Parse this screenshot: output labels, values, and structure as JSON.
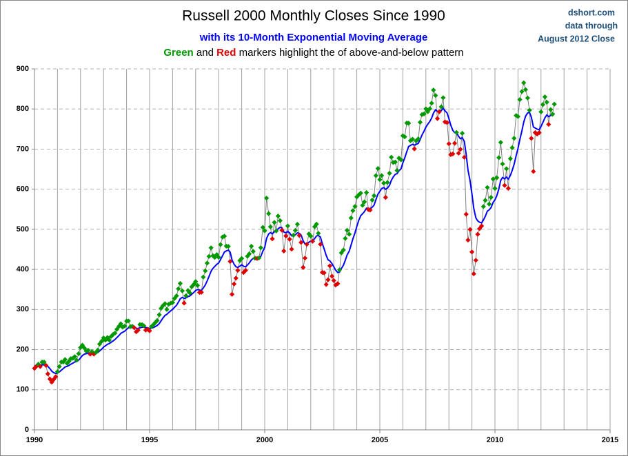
{
  "chart_data": {
    "type": "line",
    "title": "Russell 2000 Monthly Closes Since 1990",
    "subtitle": "with  its 10-Month Exponential Moving Average",
    "subtitle2": [
      {
        "text": "Green",
        "color": "#009900",
        "bold": true
      },
      {
        "text": " and ",
        "color": "#000000",
        "bold": false
      },
      {
        "text": "Red",
        "color": "#e00000",
        "bold": true
      },
      {
        "text": " markers highlight the of above-and-below pattern",
        "color": "#000000",
        "bold": false
      }
    ],
    "source": [
      "dshort.com",
      "data through",
      "August 2012  Close"
    ],
    "xlim": [
      1990,
      2015
    ],
    "xticks": [
      1990,
      1995,
      2000,
      2005,
      2010,
      2015
    ],
    "xgrid": [
      1990,
      1991,
      1992,
      1993,
      1994,
      1995,
      1996,
      1997,
      1998,
      1999,
      2000,
      2001,
      2002,
      2003,
      2004,
      2005,
      2006,
      2007,
      2008,
      2009,
      2010,
      2011,
      2012,
      2013,
      2014,
      2015
    ],
    "ylim": [
      0,
      900
    ],
    "yticks": [
      0,
      100,
      200,
      300,
      400,
      500,
      600,
      700,
      800,
      900
    ],
    "grid": true,
    "x": [
      1990,
      1990.08,
      1990.17,
      1990.25,
      1990.33,
      1990.42,
      1990.5,
      1990.58,
      1990.67,
      1990.75,
      1990.83,
      1990.92,
      1991,
      1991.08,
      1991.17,
      1991.25,
      1991.33,
      1991.42,
      1991.5,
      1991.58,
      1991.67,
      1991.75,
      1991.83,
      1991.92,
      1992,
      1992.08,
      1992.17,
      1992.25,
      1992.33,
      1992.42,
      1992.5,
      1992.58,
      1992.67,
      1992.75,
      1992.83,
      1992.92,
      1993,
      1993.08,
      1993.17,
      1993.25,
      1993.33,
      1993.42,
      1993.5,
      1993.58,
      1993.67,
      1993.75,
      1993.83,
      1993.92,
      1994,
      1994.08,
      1994.17,
      1994.25,
      1994.33,
      1994.42,
      1994.5,
      1994.58,
      1994.67,
      1994.75,
      1994.83,
      1994.92,
      1995,
      1995.08,
      1995.17,
      1995.25,
      1995.33,
      1995.42,
      1995.5,
      1995.58,
      1995.67,
      1995.75,
      1995.83,
      1995.92,
      1996,
      1996.08,
      1996.17,
      1996.25,
      1996.33,
      1996.42,
      1996.5,
      1996.58,
      1996.67,
      1996.75,
      1996.83,
      1996.92,
      1997,
      1997.08,
      1997.17,
      1997.25,
      1997.33,
      1997.42,
      1997.5,
      1997.58,
      1997.67,
      1997.75,
      1997.83,
      1997.92,
      1998,
      1998.08,
      1998.17,
      1998.25,
      1998.33,
      1998.42,
      1998.5,
      1998.58,
      1998.67,
      1998.75,
      1998.83,
      1998.92,
      1999,
      1999.08,
      1999.17,
      1999.25,
      1999.33,
      1999.42,
      1999.5,
      1999.58,
      1999.67,
      1999.75,
      1999.83,
      1999.92,
      2000,
      2000.08,
      2000.17,
      2000.25,
      2000.33,
      2000.42,
      2000.5,
      2000.58,
      2000.67,
      2000.75,
      2000.83,
      2000.92,
      2001,
      2001.08,
      2001.17,
      2001.25,
      2001.33,
      2001.42,
      2001.5,
      2001.58,
      2001.67,
      2001.75,
      2001.83,
      2001.92,
      2002,
      2002.08,
      2002.17,
      2002.25,
      2002.33,
      2002.42,
      2002.5,
      2002.58,
      2002.67,
      2002.75,
      2002.83,
      2002.92,
      2003,
      2003.08,
      2003.17,
      2003.25,
      2003.33,
      2003.42,
      2003.5,
      2003.58,
      2003.67,
      2003.75,
      2003.83,
      2003.92,
      2004,
      2004.08,
      2004.17,
      2004.25,
      2004.33,
      2004.42,
      2004.5,
      2004.58,
      2004.67,
      2004.75,
      2004.83,
      2004.92,
      2005,
      2005.08,
      2005.17,
      2005.25,
      2005.33,
      2005.42,
      2005.5,
      2005.58,
      2005.67,
      2005.75,
      2005.83,
      2005.92,
      2006,
      2006.08,
      2006.17,
      2006.25,
      2006.33,
      2006.42,
      2006.5,
      2006.58,
      2006.67,
      2006.75,
      2006.83,
      2006.92,
      2007,
      2007.08,
      2007.17,
      2007.25,
      2007.33,
      2007.42,
      2007.5,
      2007.58,
      2007.67,
      2007.75,
      2007.83,
      2007.92,
      2008,
      2008.08,
      2008.17,
      2008.25,
      2008.33,
      2008.42,
      2008.5,
      2008.58,
      2008.67,
      2008.75,
      2008.83,
      2008.92,
      2009,
      2009.08,
      2009.17,
      2009.25,
      2009.33,
      2009.42,
      2009.5,
      2009.58,
      2009.67,
      2009.75,
      2009.83,
      2009.92,
      2010,
      2010.08,
      2010.17,
      2010.25,
      2010.33,
      2010.42,
      2010.5,
      2010.58,
      2010.67,
      2010.75,
      2010.83,
      2010.92,
      2011,
      2011.08,
      2011.17,
      2011.25,
      2011.33,
      2011.42,
      2011.5,
      2011.58,
      2011.67,
      2011.75,
      2011.83,
      2011.92,
      2012,
      2012.08,
      2012.17,
      2012.25,
      2012.33,
      2012.42,
      2012.5,
      2012.58
    ],
    "series": [
      {
        "line_color": "#808080",
        "above_color": "#009900",
        "below_color": "#e00000",
        "values": [
          153.2,
          158.3,
          163.6,
          157.7,
          168.9,
          169.0,
          160.6,
          139.5,
          126.7,
          118.8,
          125.3,
          132.2,
          145.0,
          157.7,
          169.2,
          169.0,
          175.3,
          165.6,
          171.0,
          177.5,
          178.3,
          182.6,
          173.6,
          189.9,
          205.2,
          211.1,
          203.7,
          196.3,
          198.5,
          188.6,
          195.0,
          188.8,
          193.0,
          198.9,
          213.8,
          221.0,
          229.2,
          223.6,
          230.1,
          223.6,
          232.8,
          238.2,
          241.2,
          250.7,
          258.1,
          264.3,
          255.9,
          258.6,
          271.2,
          271.5,
          257.3,
          258.2,
          254.6,
          244.4,
          248.6,
          262.6,
          262.1,
          259.4,
          248.7,
          250.4,
          246.8,
          257.3,
          262.3,
          267.6,
          272.5,
          286.8,
          303.0,
          309.4,
          314.6,
          300.1,
          313.1,
          315.9,
          317.4,
          327.4,
          334.1,
          351.6,
          365.0,
          346.6,
          316.0,
          334.2,
          347.4,
          341.4,
          356.7,
          362.6,
          369.7,
          360.0,
          342.6,
          343.0,
          380.8,
          396.4,
          415.7,
          432.5,
          453.8,
          434.1,
          429.9,
          437.0,
          430.1,
          461.8,
          480.7,
          482.9,
          458.0,
          457.4,
          419.8,
          337.9,
          363.6,
          378.2,
          397.7,
          422.0,
          427.2,
          392.3,
          397.6,
          432.8,
          438.7,
          457.7,
          444.8,
          428.0,
          427.3,
          428.6,
          454.1,
          504.8,
          496.2,
          577.7,
          539.1,
          506.3,
          476.2,
          517.2,
          495.9,
          533.1,
          521.4,
          497.7,
          445.9,
          483.5,
          508.3,
          475.3,
          450.5,
          485.3,
          497.3,
          512.6,
          484.8,
          467.4,
          404.9,
          428.2,
          462.6,
          488.5,
          483.1,
          470.1,
          506.5,
          512.9,
          490.0,
          462.6,
          392.4,
          391.4,
          362.3,
          374.2,
          408.9,
          383.1,
          372.2,
          361.0,
          364.5,
          399.0,
          441.2,
          448.4,
          477.2,
          497.4,
          487.7,
          528.2,
          546.5,
          556.9,
          580.8,
          585.6,
          590.3,
          559.8,
          568.3,
          591.5,
          549.4,
          547.9,
          572.9,
          583.8,
          633.8,
          651.6,
          624.0,
          634.1,
          615.1,
          579.4,
          616.7,
          639.7,
          679.8,
          666.5,
          667.8,
          646.6,
          677.3,
          673.2,
          733.2,
          730.6,
          765.1,
          764.5,
          721.0,
          724.7,
          700.6,
          720.5,
          725.6,
          766.8,
          786.1,
          787.7,
          800.3,
          793.3,
          800.7,
          814.6,
          847.2,
          833.7,
          776.1,
          792.9,
          805.5,
          828.0,
          767.8,
          766.0,
          713.3,
          686.2,
          688.0,
          714.6,
          741.5,
          689.7,
          699.4,
          739.5,
          679.6,
          537.5,
          473.1,
          499.5,
          443.5,
          389.0,
          422.8,
          487.6,
          501.6,
          508.3,
          556.7,
          572.1,
          604.3,
          562.8,
          579.7,
          625.4,
          602.0,
          628.6,
          678.6,
          716.6,
          662.9,
          609.5,
          650.9,
          602.1,
          676.1,
          703.4,
          727.0,
          783.7,
          781.3,
          823.5,
          843.5,
          865.3,
          848.3,
          827.4,
          797.0,
          726.8,
          644.2,
          741.1,
          737.4,
          740.9,
          792.8,
          810.9,
          830.3,
          816.9,
          761.8,
          798.5,
          786.9,
          812.1
        ]
      },
      {
        "color": "#0000ff",
        "values": [
          160.0,
          159.7,
          160.4,
          159.9,
          161.5,
          162.9,
          162.5,
          158.3,
          152.5,
          146.4,
          142.6,
          140.7,
          141.5,
          144.4,
          148.9,
          152.6,
          156.7,
          158.3,
          160.6,
          163.7,
          166.4,
          169.3,
          170.1,
          173.7,
          179.4,
          185.2,
          188.6,
          190.0,
          191.5,
          191.0,
          191.7,
          191.2,
          191.5,
          192.9,
          196.7,
          201.1,
          206.2,
          209.4,
          213.2,
          215.1,
          218.3,
          221.9,
          225.4,
          230.0,
          235.1,
          240.4,
          243.2,
          246.0,
          250.6,
          254.4,
          254.9,
          255.5,
          255.3,
          253.3,
          252.5,
          254.3,
          255.7,
          256.4,
          255.0,
          254.2,
          252.8,
          253.6,
          255.2,
          257.5,
          260.2,
          265.0,
          271.9,
          278.7,
          285.2,
          287.9,
          292.5,
          296.8,
          300.5,
          305.4,
          310.6,
          318.1,
          326.6,
          330.3,
          327.7,
          328.9,
          332.2,
          333.9,
          338.0,
          342.5,
          347.5,
          349.8,
          348.5,
          347.5,
          353.5,
          361.3,
          371.2,
          382.4,
          395.4,
          402.4,
          407.4,
          412.8,
          415.9,
          424.3,
          434.5,
          443.3,
          446.0,
          448.1,
          442.9,
          423.8,
          412.9,
          406.6,
          405.0,
          408.1,
          411.6,
          408.1,
          406.2,
          411.0,
          416.1,
          423.6,
          427.5,
          427.6,
          427.5,
          427.7,
          432.5,
          445.6,
          454.8,
          477.2,
          488.4,
          491.7,
          488.9,
          494.0,
          494.4,
          501.4,
          505.0,
          503.7,
          493.2,
          491.4,
          494.5,
          491.0,
          483.6,
          483.9,
          486.3,
          491.1,
          490.0,
          485.9,
          471.2,
          463.4,
          463.2,
          467.8,
          470.6,
          470.5,
          477.0,
          483.5,
          484.7,
          480.7,
          464.6,
          451.3,
          435.1,
          424.0,
          421.3,
          414.4,
          406.7,
          398.4,
          392.2,
          393.5,
          402.2,
          410.6,
          422.7,
          436.3,
          445.6,
          460.6,
          476.2,
          490.9,
          507.2,
          521.5,
          534.0,
          538.7,
          544.1,
          552.7,
          552.1,
          551.3,
          555.2,
          560.4,
          573.8,
          587.9,
          594.5,
          601.7,
          604.1,
          599.6,
          602.7,
          609.4,
          622.2,
          630.3,
          637.1,
          638.8,
          645.8,
          650.8,
          665.8,
          677.6,
          693.5,
          706.4,
          709.1,
          711.9,
          709.9,
          711.8,
          714.3,
          723.8,
          735.1,
          744.7,
          754.8,
          761.8,
          768.9,
          777.2,
          789.9,
          797.9,
          793.9,
          793.7,
          795.9,
          801.7,
          795.5,
          790.1,
          776.2,
          759.8,
          746.7,
          740.9,
          741.0,
          731.7,
          725.8,
          728.3,
          719.4,
          686.3,
          647.5,
          620.6,
          588.4,
          552.1,
          528.6,
          521.1,
          517.6,
          515.9,
          523.3,
          532.2,
          545.3,
          548.5,
          554.2,
          567.1,
          573.4,
          583.5,
          600.8,
          621.9,
          629.3,
          625.7,
          630.3,
          625.2,
          634.4,
          647.0,
          661.5,
          683.7,
          701.5,
          723.7,
          745.4,
          767.2,
          782.0,
          790.2,
          791.5,
          779.7,
          755.1,
          752.5,
          749.8,
          748.2,
          756.3,
          766.2,
          777.9,
          785.0,
          780.8,
          784.0,
          784.5,
          789.5
        ]
      }
    ]
  }
}
